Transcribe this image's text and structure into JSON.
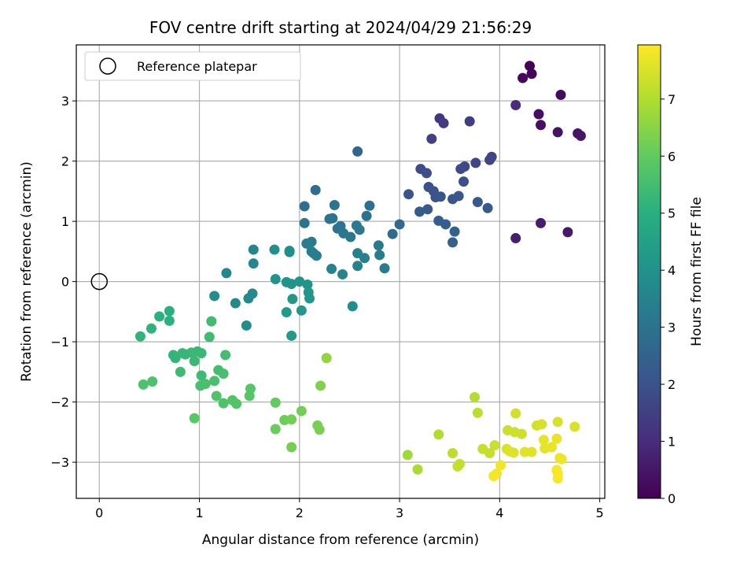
{
  "chart_data": {
    "type": "scatter",
    "title": "FOV centre drift starting at 2024/04/29 21:56:29",
    "xlabel": "Angular distance from reference (arcmin)",
    "ylabel": "Rotation from reference (arcmin)",
    "xlim": [
      -0.23,
      5.05
    ],
    "ylim": [
      -3.6,
      3.93
    ],
    "xticks": [
      0,
      1,
      2,
      3,
      4,
      5
    ],
    "yticks": [
      -3,
      -2,
      -1,
      0,
      1,
      2,
      3
    ],
    "grid": true,
    "legend": {
      "placement": "top-left",
      "entries": [
        "Reference platepar"
      ]
    },
    "reference_point": {
      "x": 0,
      "y": 0
    },
    "colorbar": {
      "label": "Hours from first FF file",
      "colormap": "viridis",
      "range": [
        0,
        7.95
      ],
      "ticks": [
        0,
        1,
        2,
        3,
        4,
        5,
        6,
        7
      ]
    },
    "points": [
      {
        "x": 4.3,
        "y": 3.58,
        "h": 0.1
      },
      {
        "x": 4.32,
        "y": 3.45,
        "h": 0.15
      },
      {
        "x": 4.23,
        "y": 3.38,
        "h": 0.2
      },
      {
        "x": 4.61,
        "y": 3.1,
        "h": 0.25
      },
      {
        "x": 4.39,
        "y": 2.78,
        "h": 0.3
      },
      {
        "x": 4.41,
        "y": 2.6,
        "h": 0.35
      },
      {
        "x": 4.58,
        "y": 2.48,
        "h": 0.4
      },
      {
        "x": 4.78,
        "y": 2.46,
        "h": 0.45
      },
      {
        "x": 4.81,
        "y": 2.42,
        "h": 0.5
      },
      {
        "x": 4.68,
        "y": 0.82,
        "h": 0.55
      },
      {
        "x": 4.41,
        "y": 0.97,
        "h": 0.6
      },
      {
        "x": 4.16,
        "y": 0.72,
        "h": 0.7
      },
      {
        "x": 4.16,
        "y": 2.93,
        "h": 1.0
      },
      {
        "x": 3.4,
        "y": 2.71,
        "h": 1.3
      },
      {
        "x": 3.44,
        "y": 2.63,
        "h": 1.35
      },
      {
        "x": 3.7,
        "y": 2.66,
        "h": 1.4
      },
      {
        "x": 3.32,
        "y": 2.37,
        "h": 1.5
      },
      {
        "x": 3.92,
        "y": 2.07,
        "h": 1.6
      },
      {
        "x": 3.9,
        "y": 2.02,
        "h": 1.65
      },
      {
        "x": 3.76,
        "y": 1.97,
        "h": 1.7
      },
      {
        "x": 3.65,
        "y": 1.91,
        "h": 1.75
      },
      {
        "x": 3.61,
        "y": 1.87,
        "h": 1.8
      },
      {
        "x": 3.21,
        "y": 1.87,
        "h": 1.85
      },
      {
        "x": 3.27,
        "y": 1.8,
        "h": 1.9
      },
      {
        "x": 3.64,
        "y": 1.66,
        "h": 1.9
      },
      {
        "x": 3.29,
        "y": 1.57,
        "h": 1.95
      },
      {
        "x": 3.34,
        "y": 1.5,
        "h": 2.0
      },
      {
        "x": 3.09,
        "y": 1.45,
        "h": 2.05
      },
      {
        "x": 3.36,
        "y": 1.4,
        "h": 2.05
      },
      {
        "x": 3.41,
        "y": 1.41,
        "h": 2.1
      },
      {
        "x": 3.53,
        "y": 1.37,
        "h": 2.1
      },
      {
        "x": 3.59,
        "y": 1.42,
        "h": 2.15
      },
      {
        "x": 3.78,
        "y": 1.32,
        "h": 2.2
      },
      {
        "x": 3.88,
        "y": 1.22,
        "h": 2.25
      },
      {
        "x": 3.28,
        "y": 1.2,
        "h": 2.25
      },
      {
        "x": 3.2,
        "y": 1.16,
        "h": 2.3
      },
      {
        "x": 3.39,
        "y": 1.01,
        "h": 2.35
      },
      {
        "x": 3.46,
        "y": 0.95,
        "h": 2.35
      },
      {
        "x": 3.55,
        "y": 0.83,
        "h": 2.4
      },
      {
        "x": 3.53,
        "y": 0.65,
        "h": 2.45
      },
      {
        "x": 2.58,
        "y": 2.16,
        "h": 2.6
      },
      {
        "x": 3.0,
        "y": 0.95,
        "h": 2.7
      },
      {
        "x": 2.93,
        "y": 0.79,
        "h": 2.75
      },
      {
        "x": 2.16,
        "y": 1.52,
        "h": 2.8
      },
      {
        "x": 2.05,
        "y": 1.25,
        "h": 2.85
      },
      {
        "x": 2.7,
        "y": 1.26,
        "h": 2.9
      },
      {
        "x": 2.67,
        "y": 1.09,
        "h": 2.95
      },
      {
        "x": 2.35,
        "y": 1.27,
        "h": 3.0
      },
      {
        "x": 2.3,
        "y": 1.04,
        "h": 3.0
      },
      {
        "x": 2.33,
        "y": 1.05,
        "h": 3.05
      },
      {
        "x": 2.05,
        "y": 0.97,
        "h": 3.05
      },
      {
        "x": 2.38,
        "y": 0.88,
        "h": 3.1
      },
      {
        "x": 2.41,
        "y": 0.92,
        "h": 3.1
      },
      {
        "x": 2.44,
        "y": 0.8,
        "h": 3.15
      },
      {
        "x": 2.51,
        "y": 0.74,
        "h": 3.15
      },
      {
        "x": 2.57,
        "y": 0.93,
        "h": 3.2
      },
      {
        "x": 2.6,
        "y": 0.86,
        "h": 3.2
      },
      {
        "x": 2.79,
        "y": 0.6,
        "h": 3.25
      },
      {
        "x": 2.8,
        "y": 0.44,
        "h": 3.25
      },
      {
        "x": 2.85,
        "y": 0.22,
        "h": 3.3
      },
      {
        "x": 2.12,
        "y": 0.66,
        "h": 3.3
      },
      {
        "x": 2.07,
        "y": 0.63,
        "h": 3.35
      },
      {
        "x": 2.14,
        "y": 0.47,
        "h": 3.35
      },
      {
        "x": 2.12,
        "y": 0.5,
        "h": 3.4
      },
      {
        "x": 2.17,
        "y": 0.43,
        "h": 3.4
      },
      {
        "x": 2.58,
        "y": 0.47,
        "h": 3.45
      },
      {
        "x": 2.65,
        "y": 0.39,
        "h": 3.45
      },
      {
        "x": 2.58,
        "y": 0.26,
        "h": 3.5
      },
      {
        "x": 2.32,
        "y": 0.21,
        "h": 3.5
      },
      {
        "x": 2.43,
        "y": 0.12,
        "h": 3.55
      },
      {
        "x": 1.27,
        "y": 0.14,
        "h": 3.6
      },
      {
        "x": 1.54,
        "y": 0.53,
        "h": 3.6
      },
      {
        "x": 1.54,
        "y": 0.3,
        "h": 3.65
      },
      {
        "x": 1.53,
        "y": -0.2,
        "h": 3.7
      },
      {
        "x": 1.49,
        "y": -0.28,
        "h": 3.7
      },
      {
        "x": 1.36,
        "y": -0.36,
        "h": 3.75
      },
      {
        "x": 1.47,
        "y": -0.73,
        "h": 3.8
      },
      {
        "x": 1.15,
        "y": -0.24,
        "h": 3.85
      },
      {
        "x": 2.53,
        "y": -0.41,
        "h": 3.85
      },
      {
        "x": 1.75,
        "y": 0.53,
        "h": 3.9
      },
      {
        "x": 1.9,
        "y": 0.49,
        "h": 3.95
      },
      {
        "x": 1.9,
        "y": 0.51,
        "h": 3.95
      },
      {
        "x": 1.76,
        "y": 0.04,
        "h": 4.0
      },
      {
        "x": 1.87,
        "y": -0.01,
        "h": 4.05
      },
      {
        "x": 1.92,
        "y": -0.04,
        "h": 4.05
      },
      {
        "x": 2.0,
        "y": 0.0,
        "h": 4.1
      },
      {
        "x": 2.08,
        "y": -0.05,
        "h": 4.1
      },
      {
        "x": 2.09,
        "y": -0.18,
        "h": 4.15
      },
      {
        "x": 2.1,
        "y": -0.28,
        "h": 4.15
      },
      {
        "x": 1.93,
        "y": -0.29,
        "h": 4.2
      },
      {
        "x": 2.02,
        "y": -0.48,
        "h": 4.2
      },
      {
        "x": 1.87,
        "y": -0.51,
        "h": 4.25
      },
      {
        "x": 1.92,
        "y": -0.9,
        "h": 4.25
      },
      {
        "x": 0.7,
        "y": -0.49,
        "h": 5.0
      },
      {
        "x": 0.7,
        "y": -0.65,
        "h": 5.05
      },
      {
        "x": 0.6,
        "y": -0.58,
        "h": 5.05
      },
      {
        "x": 0.52,
        "y": -0.78,
        "h": 5.1
      },
      {
        "x": 0.41,
        "y": -0.91,
        "h": 5.15
      },
      {
        "x": 0.74,
        "y": -1.22,
        "h": 5.2
      },
      {
        "x": 0.76,
        "y": -1.27,
        "h": 5.2
      },
      {
        "x": 0.83,
        "y": -1.19,
        "h": 5.25
      },
      {
        "x": 0.86,
        "y": -1.21,
        "h": 5.25
      },
      {
        "x": 0.92,
        "y": -1.18,
        "h": 5.3
      },
      {
        "x": 0.98,
        "y": -1.16,
        "h": 5.3
      },
      {
        "x": 1.02,
        "y": -1.19,
        "h": 5.35
      },
      {
        "x": 0.95,
        "y": -1.32,
        "h": 5.35
      },
      {
        "x": 0.81,
        "y": -1.5,
        "h": 5.4
      },
      {
        "x": 1.02,
        "y": -1.56,
        "h": 5.4
      },
      {
        "x": 1.1,
        "y": -0.92,
        "h": 5.45
      },
      {
        "x": 1.12,
        "y": -0.66,
        "h": 5.45
      },
      {
        "x": 1.26,
        "y": -1.22,
        "h": 5.5
      },
      {
        "x": 1.19,
        "y": -1.47,
        "h": 5.5
      },
      {
        "x": 1.24,
        "y": -1.53,
        "h": 5.55
      },
      {
        "x": 1.01,
        "y": -1.73,
        "h": 5.55
      },
      {
        "x": 1.06,
        "y": -1.7,
        "h": 5.6
      },
      {
        "x": 1.15,
        "y": -1.65,
        "h": 5.6
      },
      {
        "x": 0.53,
        "y": -1.66,
        "h": 5.65
      },
      {
        "x": 0.44,
        "y": -1.71,
        "h": 5.65
      },
      {
        "x": 1.17,
        "y": -1.9,
        "h": 5.7
      },
      {
        "x": 1.24,
        "y": -2.02,
        "h": 5.7
      },
      {
        "x": 1.33,
        "y": -1.97,
        "h": 5.75
      },
      {
        "x": 1.37,
        "y": -2.03,
        "h": 5.75
      },
      {
        "x": 1.5,
        "y": -1.9,
        "h": 5.8
      },
      {
        "x": 1.51,
        "y": -1.78,
        "h": 5.8
      },
      {
        "x": 0.95,
        "y": -2.27,
        "h": 5.85
      },
      {
        "x": 1.76,
        "y": -2.01,
        "h": 6.0
      },
      {
        "x": 1.76,
        "y": -2.45,
        "h": 6.1
      },
      {
        "x": 1.85,
        "y": -2.3,
        "h": 6.15
      },
      {
        "x": 1.92,
        "y": -2.29,
        "h": 6.2
      },
      {
        "x": 2.02,
        "y": -2.15,
        "h": 6.2
      },
      {
        "x": 1.92,
        "y": -2.75,
        "h": 6.25
      },
      {
        "x": 2.18,
        "y": -2.39,
        "h": 6.3
      },
      {
        "x": 2.2,
        "y": -2.46,
        "h": 6.3
      },
      {
        "x": 2.21,
        "y": -1.73,
        "h": 6.4
      },
      {
        "x": 2.27,
        "y": -1.27,
        "h": 6.6
      },
      {
        "x": 3.08,
        "y": -2.88,
        "h": 6.8
      },
      {
        "x": 3.18,
        "y": -3.12,
        "h": 6.9
      },
      {
        "x": 3.39,
        "y": -2.54,
        "h": 7.0
      },
      {
        "x": 3.75,
        "y": -1.92,
        "h": 7.05
      },
      {
        "x": 3.78,
        "y": -2.18,
        "h": 7.1
      },
      {
        "x": 3.53,
        "y": -2.85,
        "h": 7.15
      },
      {
        "x": 3.58,
        "y": -3.07,
        "h": 7.2
      },
      {
        "x": 3.6,
        "y": -3.03,
        "h": 7.2
      },
      {
        "x": 3.83,
        "y": -2.78,
        "h": 7.25
      },
      {
        "x": 3.9,
        "y": -2.85,
        "h": 7.25
      },
      {
        "x": 3.95,
        "y": -2.72,
        "h": 7.3
      },
      {
        "x": 4.08,
        "y": -2.47,
        "h": 7.3
      },
      {
        "x": 4.15,
        "y": -2.5,
        "h": 7.35
      },
      {
        "x": 4.22,
        "y": -2.53,
        "h": 7.35
      },
      {
        "x": 4.16,
        "y": -2.19,
        "h": 7.4
      },
      {
        "x": 4.37,
        "y": -2.39,
        "h": 7.4
      },
      {
        "x": 4.42,
        "y": -2.37,
        "h": 7.45
      },
      {
        "x": 4.58,
        "y": -2.33,
        "h": 7.45
      },
      {
        "x": 4.75,
        "y": -2.41,
        "h": 7.5
      },
      {
        "x": 4.07,
        "y": -2.78,
        "h": 7.5
      },
      {
        "x": 4.1,
        "y": -2.82,
        "h": 7.55
      },
      {
        "x": 4.14,
        "y": -2.84,
        "h": 7.55
      },
      {
        "x": 4.25,
        "y": -2.83,
        "h": 7.6
      },
      {
        "x": 4.32,
        "y": -2.83,
        "h": 7.6
      },
      {
        "x": 4.44,
        "y": -2.63,
        "h": 7.65
      },
      {
        "x": 4.45,
        "y": -2.77,
        "h": 7.65
      },
      {
        "x": 4.52,
        "y": -2.75,
        "h": 7.7
      },
      {
        "x": 4.57,
        "y": -2.61,
        "h": 7.7
      },
      {
        "x": 4.6,
        "y": -2.93,
        "h": 7.75
      },
      {
        "x": 4.62,
        "y": -2.95,
        "h": 7.75
      },
      {
        "x": 4.01,
        "y": -3.05,
        "h": 7.8
      },
      {
        "x": 3.97,
        "y": -3.19,
        "h": 7.8
      },
      {
        "x": 3.94,
        "y": -3.23,
        "h": 7.85
      },
      {
        "x": 4.57,
        "y": -3.13,
        "h": 7.85
      },
      {
        "x": 4.58,
        "y": -3.18,
        "h": 7.9
      },
      {
        "x": 4.58,
        "y": -3.27,
        "h": 7.9
      }
    ]
  }
}
